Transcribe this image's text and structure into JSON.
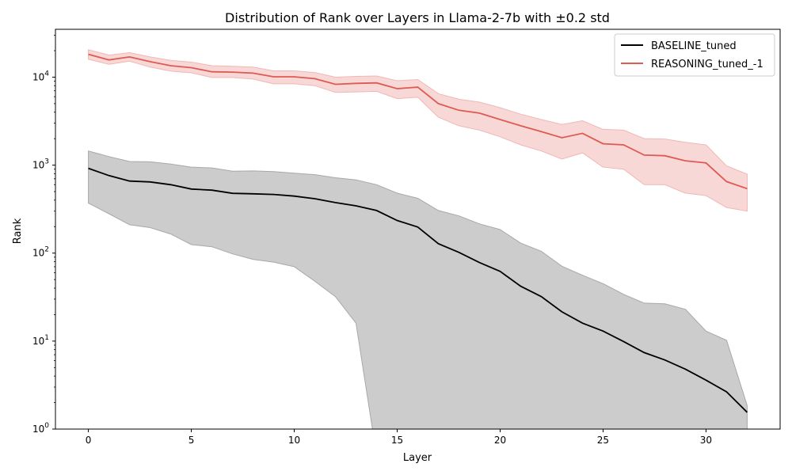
{
  "chart_data": {
    "type": "line",
    "title": "Distribution of Rank over Layers in Llama-2-7b with ±0.2 std",
    "xlabel": "Layer",
    "ylabel": "Rank",
    "xlim": [
      -1.6,
      33.6
    ],
    "ylim": [
      1,
      35000
    ],
    "yscale": "log",
    "xticks": [
      0,
      5,
      10,
      15,
      20,
      25,
      30
    ],
    "yticks": [
      {
        "value": 1,
        "base": "10",
        "exp": "0"
      },
      {
        "value": 10,
        "base": "10",
        "exp": "1"
      },
      {
        "value": 100,
        "base": "10",
        "exp": "2"
      },
      {
        "value": 1000,
        "base": "10",
        "exp": "3"
      },
      {
        "value": 10000,
        "base": "10",
        "exp": "4"
      }
    ],
    "grid": false,
    "legend_position": "top-right",
    "x": [
      0,
      1,
      2,
      3,
      4,
      5,
      6,
      7,
      8,
      9,
      10,
      11,
      12,
      13,
      14,
      15,
      16,
      17,
      18,
      19,
      20,
      21,
      22,
      23,
      24,
      25,
      26,
      27,
      28,
      29,
      30,
      31,
      32
    ],
    "series": [
      {
        "name": "BASELINE_tuned",
        "color": "#000000",
        "band_color": "#cccccc",
        "band_stroke": "#a8a8a8",
        "values": [
          920,
          760,
          660,
          645,
          600,
          535,
          520,
          478,
          472,
          465,
          445,
          415,
          375,
          345,
          305,
          235,
          198,
          128,
          102,
          78,
          62,
          42,
          32,
          21.5,
          16,
          13,
          9.9,
          7.4,
          6.1,
          4.8,
          3.6,
          2.65,
          1.55
        ],
        "upper": [
          1450,
          1250,
          1100,
          1090,
          1030,
          950,
          930,
          855,
          860,
          845,
          810,
          780,
          720,
          680,
          600,
          480,
          420,
          305,
          265,
          215,
          185,
          130,
          105,
          71,
          56,
          45,
          34,
          27,
          26.5,
          23,
          13,
          10.2,
          1.85
        ],
        "lower": [
          370,
          280,
          210,
          195,
          165,
          125,
          118,
          98,
          85,
          79,
          70,
          48,
          32,
          16,
          0.5,
          0.5,
          0.5,
          0.5,
          0.5,
          0.5,
          0.5,
          0.5,
          0.5,
          0.5,
          0.5,
          0.5,
          0.5,
          0.5,
          0.5,
          0.5,
          0.5,
          0.5,
          0.5
        ]
      },
      {
        "name": "REASONING_tuned_-1",
        "color": "#de5a52",
        "band_color": "#f7d8d6",
        "band_stroke": "#f0b8b4",
        "values": [
          18200,
          15700,
          17000,
          15000,
          13500,
          12800,
          11500,
          11400,
          11100,
          10100,
          10100,
          9600,
          8300,
          8500,
          8600,
          7400,
          7700,
          5000,
          4200,
          3900,
          3300,
          2800,
          2400,
          2050,
          2300,
          1750,
          1700,
          1300,
          1280,
          1120,
          1060,
          650,
          540
        ],
        "upper": [
          20500,
          17800,
          19000,
          17000,
          15500,
          14800,
          13500,
          13300,
          13000,
          11800,
          11800,
          11300,
          10000,
          10200,
          10300,
          9100,
          9400,
          6500,
          5600,
          5200,
          4500,
          3800,
          3300,
          2900,
          3200,
          2550,
          2500,
          2000,
          1980,
          1820,
          1700,
          980,
          790
        ],
        "lower": [
          16000,
          14000,
          15200,
          13000,
          11700,
          11200,
          9900,
          9900,
          9500,
          8400,
          8400,
          8000,
          6700,
          6800,
          6900,
          5700,
          5900,
          3500,
          2800,
          2500,
          2100,
          1700,
          1450,
          1170,
          1380,
          950,
          900,
          600,
          600,
          480,
          450,
          330,
          300
        ]
      }
    ]
  }
}
